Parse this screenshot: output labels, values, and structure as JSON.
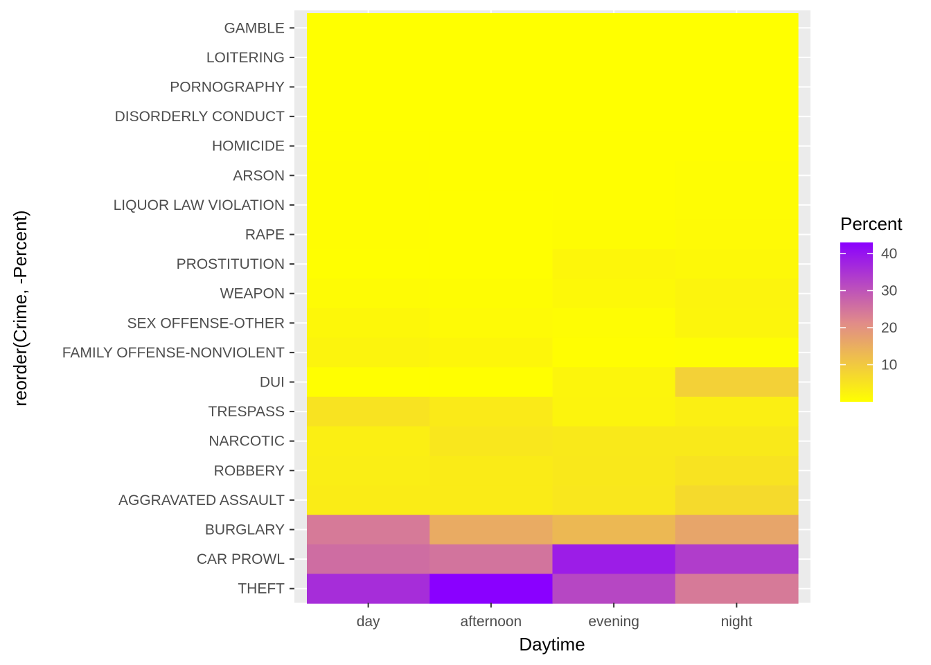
{
  "chart_data": {
    "type": "heatmap",
    "x_categories": [
      "day",
      "afternoon",
      "evening",
      "night"
    ],
    "y_categories": [
      "GAMBLE",
      "LOITERING",
      "PORNOGRAPHY",
      "DISORDERLY CONDUCT",
      "HOMICIDE",
      "ARSON",
      "LIQUOR LAW VIOLATION",
      "RAPE",
      "PROSTITUTION",
      "WEAPON",
      "SEX OFFENSE-OTHER",
      "FAMILY OFFENSE-NONVIOLENT",
      "DUI",
      "TRESPASS",
      "NARCOTIC",
      "ROBBERY",
      "AGGRAVATED ASSAULT",
      "BURGLARY",
      "CAR PROWL",
      "THEFT"
    ],
    "values": [
      [
        0.0,
        0.0,
        0.0,
        0.0
      ],
      [
        0.0,
        0.0,
        0.0,
        0.0
      ],
      [
        0.0,
        0.0,
        0.0,
        0.0
      ],
      [
        0.0,
        0.0,
        0.0,
        0.0
      ],
      [
        0.1,
        0.1,
        0.1,
        0.2
      ],
      [
        0.3,
        0.2,
        0.2,
        0.4
      ],
      [
        0.2,
        0.1,
        0.3,
        0.6
      ],
      [
        0.3,
        0.2,
        0.5,
        0.9
      ],
      [
        0.2,
        0.1,
        1.6,
        1.3
      ],
      [
        0.8,
        0.5,
        1.2,
        2.0
      ],
      [
        1.4,
        1.0,
        0.6,
        1.8
      ],
      [
        2.1,
        1.6,
        0.3,
        0.4
      ],
      [
        0.2,
        0.1,
        1.8,
        8.5
      ],
      [
        5.2,
        3.8,
        2.0,
        3.0
      ],
      [
        3.0,
        4.5,
        4.0,
        4.0
      ],
      [
        3.2,
        3.6,
        4.2,
        5.2
      ],
      [
        3.5,
        3.6,
        4.5,
        6.8
      ],
      [
        24.0,
        15.5,
        13.0,
        16.5
      ],
      [
        26.0,
        25.0,
        38.5,
        33.5
      ],
      [
        36.0,
        43.0,
        32.0,
        24.0
      ]
    ],
    "xlabel": "Daytime",
    "ylabel": "reorder(Crime, -Percent)",
    "legend": {
      "title": "Percent",
      "ticks": [
        10,
        20,
        30,
        40
      ],
      "min": 0,
      "max": 43,
      "low_color": "#FFFF00",
      "mid_color": "#E08A8A",
      "high_color": "#8A00FF",
      "placement": "right"
    },
    "grid": true,
    "panel_background": "#EBEBEB"
  }
}
